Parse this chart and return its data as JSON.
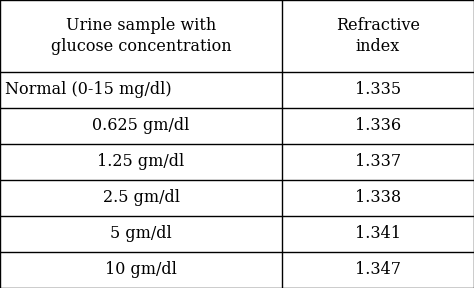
{
  "col1_header_line1": "Urine sample with",
  "col1_header_line2": "glucose concentration",
  "col2_header_line1": "Refractive",
  "col2_header_line2": "index",
  "rows": [
    [
      "Normal (0-15 mg/dl)",
      "1.335"
    ],
    [
      "0.625 gm/dl",
      "1.336"
    ],
    [
      "1.25 gm/dl",
      "1.337"
    ],
    [
      "2.5 gm/dl",
      "1.338"
    ],
    [
      "5 gm/dl",
      "1.341"
    ],
    [
      "10 gm/dl",
      "1.347"
    ]
  ],
  "background_color": "#ffffff",
  "text_color": "#000000",
  "line_color": "#000000",
  "col_split": 0.595,
  "font_size": 11.5,
  "header_font_size": 11.5,
  "line_width": 1.0
}
